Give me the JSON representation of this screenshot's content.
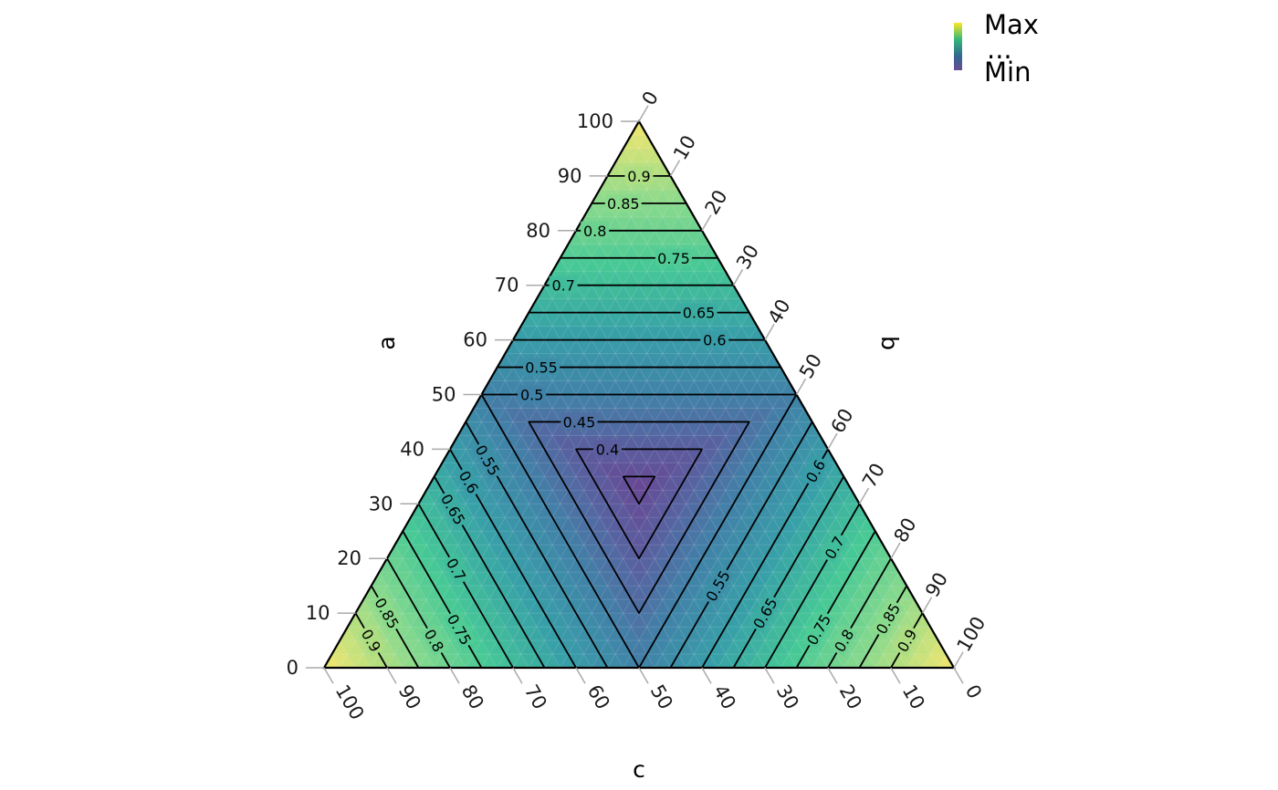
{
  "chart_data": {
    "type": "ternary-contour",
    "axes": {
      "a": {
        "label": "a",
        "ticks": [
          "0",
          "10",
          "20",
          "30",
          "40",
          "50",
          "60",
          "70",
          "80",
          "90",
          "100"
        ]
      },
      "b": {
        "label": "b",
        "ticks": [
          "0",
          "10",
          "20",
          "30",
          "40",
          "50",
          "60",
          "70",
          "80",
          "90",
          "100"
        ]
      },
      "c": {
        "label": "c",
        "ticks": [
          "100",
          "90",
          "80",
          "70",
          "60",
          "50",
          "40",
          "30",
          "20",
          "10",
          "0"
        ]
      }
    },
    "range": [
      0,
      100
    ],
    "value_range": [
      0.333,
      1.0
    ],
    "contour_levels": [
      0.35,
      0.4,
      0.45,
      0.5,
      0.55,
      0.6,
      0.65,
      0.7,
      0.75,
      0.8,
      0.85,
      0.9
    ],
    "contour_labels": [
      {
        "text": "0.9",
        "a": 90,
        "b": 5,
        "c": 5
      },
      {
        "text": "0.85",
        "a": 85,
        "b": 5,
        "c": 10
      },
      {
        "text": "0.8",
        "a": 80,
        "b": 3,
        "c": 17
      },
      {
        "text": "0.75",
        "a": 75,
        "b": 18,
        "c": 7
      },
      {
        "text": "0.7",
        "a": 70,
        "b": 3,
        "c": 27
      },
      {
        "text": "0.65",
        "a": 65,
        "b": 27,
        "c": 8
      },
      {
        "text": "0.6",
        "a": 60,
        "b": 32,
        "c": 8
      },
      {
        "text": "0.55",
        "a": 55,
        "b": 7,
        "c": 38
      },
      {
        "text": "0.5",
        "a": 50,
        "b": 8,
        "c": 42
      },
      {
        "text": "0.45",
        "a": 45,
        "b": 18,
        "c": 37
      },
      {
        "text": "0.4",
        "a": 40,
        "b": 25,
        "c": 35
      },
      {
        "text": "0.9",
        "a": 5,
        "b": 5,
        "c": 90
      },
      {
        "text": "0.85",
        "a": 10,
        "b": 5,
        "c": 85
      },
      {
        "text": "0.8",
        "a": 5,
        "b": 15,
        "c": 80
      },
      {
        "text": "0.75",
        "a": 7,
        "b": 18,
        "c": 75
      },
      {
        "text": "0.7",
        "a": 18,
        "b": 12,
        "c": 70
      },
      {
        "text": "0.65",
        "a": 29,
        "b": 6,
        "c": 65
      },
      {
        "text": "0.6",
        "a": 34,
        "b": 6,
        "c": 60
      },
      {
        "text": "0.55",
        "a": 38,
        "b": 7,
        "c": 55
      },
      {
        "text": "0.9",
        "a": 5,
        "b": 90,
        "c": 5
      },
      {
        "text": "0.85",
        "a": 9,
        "b": 85,
        "c": 6
      },
      {
        "text": "0.8",
        "a": 5,
        "b": 80,
        "c": 15
      },
      {
        "text": "0.75",
        "a": 7,
        "b": 75,
        "c": 18
      },
      {
        "text": "0.7",
        "a": 22,
        "b": 70,
        "c": 8
      },
      {
        "text": "0.65",
        "a": 10,
        "b": 65,
        "c": 25
      },
      {
        "text": "0.6",
        "a": 36,
        "b": 60,
        "c": 4
      },
      {
        "text": "0.55",
        "a": 15,
        "b": 55,
        "c": 30
      }
    ],
    "colormap": [
      "#440154",
      "#31688e",
      "#35b779",
      "#fde725"
    ],
    "legend": {
      "max_label": "Max",
      "dots_label": "...",
      "min_label": "Min",
      "position": "top-right"
    }
  }
}
